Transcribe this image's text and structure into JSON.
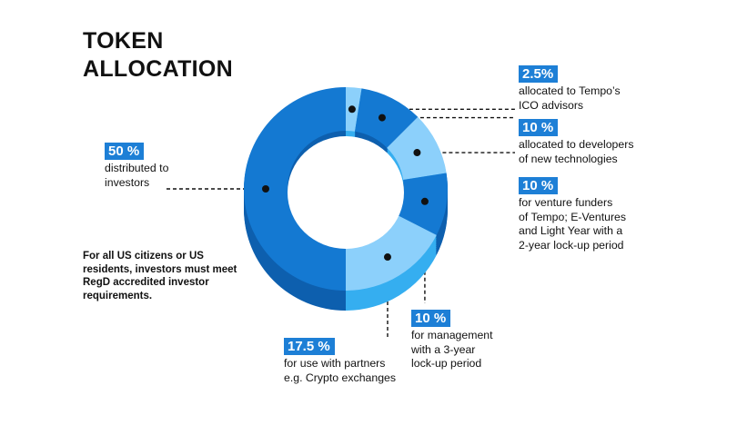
{
  "title": {
    "line1": "TOKEN",
    "line2": "ALLOCATION"
  },
  "note": "For all US citizens or US residents, investors must meet RegD accredited investor requirements.",
  "colors": {
    "dark": "#1479d2",
    "darkShade": "#0d5fae",
    "light": "#8cd0fb",
    "lightShade": "#35aef0",
    "accent": "#1d7fd6"
  },
  "chart_data": {
    "type": "pie",
    "title": "TOKEN ALLOCATION",
    "slices": [
      {
        "label": "allocated to Tempo's ICO advisors",
        "value": 2.5,
        "display": "2.5 %",
        "color": "#8cd0fb"
      },
      {
        "label": "allocated to developers of new technologies",
        "value": 10,
        "display": "10 %",
        "color": "#1479d2"
      },
      {
        "label": "for venture funders of Tempo; E-Ventures and Light Year with a 2-year lock-up period",
        "value": 10,
        "display": "10 %",
        "color": "#8cd0fb"
      },
      {
        "label": "for management with a 3-year lock-up period",
        "value": 10,
        "display": "10 %",
        "color": "#1479d2"
      },
      {
        "label": "for use with partners e.g. Crypto exchanges",
        "value": 17.5,
        "display": "17.5 %",
        "color": "#8cd0fb"
      },
      {
        "label": "distributed to investors",
        "value": 50,
        "display": "50 %",
        "color": "#1479d2"
      }
    ]
  },
  "callouts": [
    {
      "pct": "2.5%",
      "desc": "allocated to Tempo’s\nICO advisors"
    },
    {
      "pct": "10 %",
      "desc": "allocated to developers\nof new technologies"
    },
    {
      "pct": "10 %",
      "desc": "for venture funders\nof Tempo; E-Ventures\nand Light Year with a\n2-year lock-up period"
    },
    {
      "pct": "10 %",
      "desc": "for management\nwith a 3-year\nlock-up period"
    },
    {
      "pct": "17.5 %",
      "desc": "for use with partners\ne.g. Crypto exchanges"
    },
    {
      "pct": "50 %",
      "desc": "distributed to\ninvestors"
    }
  ]
}
